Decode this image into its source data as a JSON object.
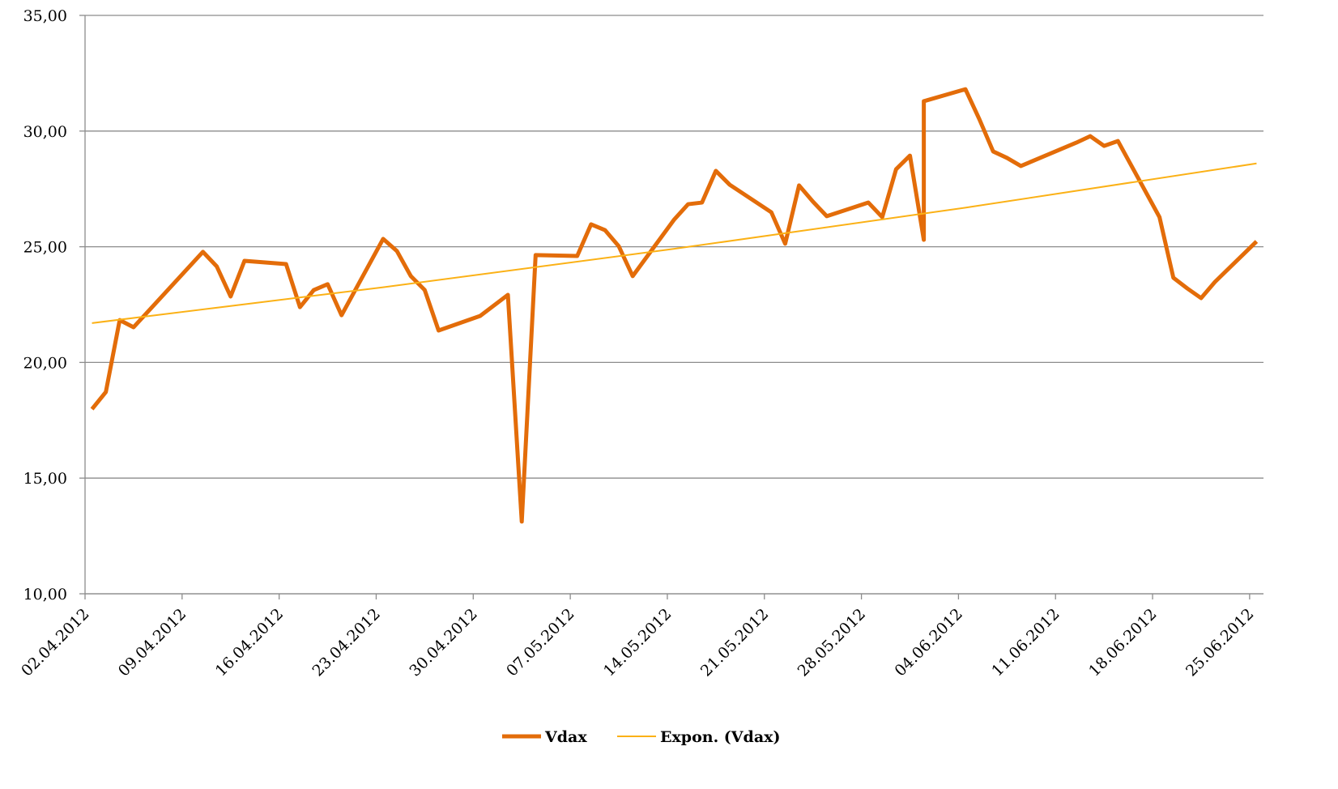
{
  "chart_data": {
    "type": "line",
    "series": [
      {
        "name": "Vdax",
        "color": "#e36c09",
        "width": 5,
        "x": [
          "02.04.2012",
          "03.04.2012",
          "04.04.2012",
          "05.04.2012",
          "10.04.2012",
          "11.04.2012",
          "12.04.2012",
          "13.04.2012",
          "16.04.2012",
          "17.04.2012",
          "18.04.2012",
          "19.04.2012",
          "20.04.2012",
          "23.04.2012",
          "24.04.2012",
          "25.04.2012",
          "26.04.2012",
          "27.04.2012",
          "30.04.2012",
          "02.05.2012",
          "03.05.2012",
          "04.05.2012",
          "07.05.2012",
          "08.05.2012",
          "09.05.2012",
          "10.05.2012",
          "11.05.2012",
          "14.05.2012",
          "15.05.2012",
          "16.05.2012",
          "17.05.2012",
          "18.05.2012",
          "21.05.2012",
          "22.05.2012",
          "23.05.2012",
          "24.05.2012",
          "25.05.2012",
          "28.05.2012",
          "29.05.2012",
          "30.05.2012",
          "31.05.2012",
          "01.06.2012",
          "01.06.2012",
          "04.06.2012",
          "05.06.2012",
          "06.06.2012",
          "07.06.2012",
          "08.06.2012",
          "12.06.2012",
          "13.06.2012",
          "14.06.2012",
          "15.06.2012",
          "18.06.2012",
          "19.06.2012",
          "20.06.2012",
          "21.06.2012",
          "22.06.2012",
          "25.06.2012"
        ],
        "values": [
          17.98,
          18.72,
          21.83,
          21.52,
          24.78,
          24.15,
          22.85,
          24.39,
          24.25,
          22.39,
          23.13,
          23.38,
          22.04,
          25.34,
          24.81,
          23.73,
          23.13,
          21.38,
          22.01,
          22.92,
          13.12,
          24.64,
          24.6,
          25.97,
          25.72,
          25.02,
          23.73,
          26.18,
          26.84,
          26.91,
          28.28,
          27.68,
          26.49,
          25.13,
          27.65,
          26.95,
          26.32,
          26.91,
          26.28,
          28.35,
          28.94,
          25.3,
          31.29,
          31.81,
          30.52,
          29.12,
          28.84,
          28.49,
          29.5,
          29.78,
          29.36,
          29.57,
          26.28,
          23.66,
          23.2,
          22.78,
          23.48,
          25.23
        ]
      },
      {
        "name": "Expon. (Vdax)",
        "color": "#fbb116",
        "width": 2,
        "x": [
          "02.04.2012",
          "23.04.2012",
          "14.05.2012",
          "04.06.2012",
          "25.06.2012"
        ],
        "values": [
          21.7,
          23.25,
          24.91,
          26.69,
          28.6
        ]
      }
    ],
    "xlim": [
      "02.04.2012",
      "26.06.2012"
    ],
    "xticks": [
      "02.04.2012",
      "09.04.2012",
      "16.04.2012",
      "23.04.2012",
      "30.04.2012",
      "07.05.2012",
      "14.05.2012",
      "21.05.2012",
      "28.05.2012",
      "04.06.2012",
      "11.06.2012",
      "18.06.2012",
      "25.06.2012"
    ],
    "ylim": [
      10,
      35
    ],
    "yticks": [
      {
        "value": 10,
        "label": "10,00"
      },
      {
        "value": 15,
        "label": "15,00"
      },
      {
        "value": 20,
        "label": "20,00"
      },
      {
        "value": 25,
        "label": "25,00"
      },
      {
        "value": 30,
        "label": "30,00"
      },
      {
        "value": 35,
        "label": "35,00"
      }
    ],
    "grid": true,
    "legend": "bottom"
  }
}
